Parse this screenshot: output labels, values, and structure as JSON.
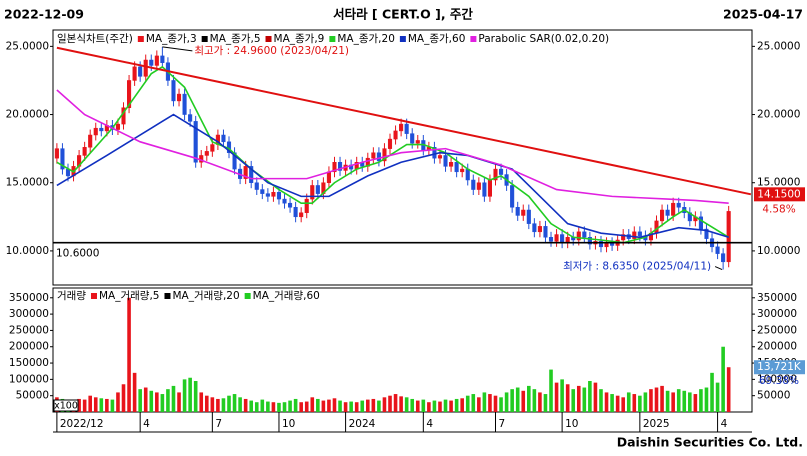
{
  "header": {
    "start_date": "2022-12-09",
    "title": "서타라 [ CERT.O ], 주간",
    "end_date": "2025-04-17"
  },
  "footer": "Daishin Securities Co. Ltd.",
  "chart_data": [
    {
      "type": "candlestick",
      "legend_title": "일본식차트(주간)",
      "series": [
        {
          "name": "MA_종가,3",
          "color": "#e8141b"
        },
        {
          "name": "MA_종가,5",
          "color": "#000000"
        },
        {
          "name": "MA_종가,9",
          "color": "#c00000"
        },
        {
          "name": "MA_종가,20",
          "color": "#22cc22",
          "x": [
            0,
            3,
            10,
            17,
            19,
            23,
            28,
            31,
            35,
            40,
            44,
            46,
            50,
            54,
            58,
            63,
            66,
            70,
            74,
            78,
            80,
            85,
            89,
            93,
            98,
            102,
            106,
            111,
            113,
            117,
            121
          ],
          "values": [
            16.5,
            15.8,
            19,
            23,
            23.5,
            22,
            18,
            17.5,
            16,
            14.5,
            13.5,
            13.5,
            15,
            16,
            16.5,
            17.8,
            17.8,
            17.2,
            16,
            15.2,
            15.5,
            14,
            12,
            11,
            10.8,
            10.6,
            11,
            12.5,
            13,
            12,
            11
          ]
        },
        {
          "name": "MA_종가,60",
          "color": "#1030c0",
          "x": [
            0,
            9,
            19,
            21,
            29,
            38,
            44,
            49,
            56,
            62,
            69,
            74,
            82,
            87,
            92,
            98,
            105,
            112,
            117,
            121
          ],
          "values": [
            14.8,
            17,
            19.5,
            20,
            18,
            15,
            14,
            14,
            15.5,
            16.5,
            17.2,
            17,
            16,
            14,
            12,
            11.3,
            11,
            11.7,
            11.5,
            11
          ]
        },
        {
          "name": "Parabolic SAR(0.02,0.20)",
          "color": "#e020e0",
          "x": [
            0,
            5,
            15,
            25,
            35,
            45,
            55,
            62,
            70,
            80,
            90,
            100,
            110,
            115,
            121
          ],
          "values": [
            21.8,
            20,
            18,
            16.8,
            15.3,
            15.3,
            16.5,
            17.2,
            17.5,
            16.3,
            14.5,
            14,
            13.8,
            13.7,
            13.5
          ]
        }
      ],
      "x": [
        0,
        1,
        2,
        3,
        4,
        5,
        6,
        7,
        8,
        9,
        10,
        11,
        12,
        13,
        14,
        15,
        16,
        17,
        18,
        19,
        20,
        21,
        22,
        23,
        24,
        25,
        26,
        27,
        28,
        29,
        30,
        31,
        32,
        33,
        34,
        35,
        36,
        37,
        38,
        39,
        40,
        41,
        42,
        43,
        44,
        45,
        46,
        47,
        48,
        49,
        50,
        51,
        52,
        53,
        54,
        55,
        56,
        57,
        58,
        59,
        60,
        61,
        62,
        63,
        64,
        65,
        66,
        67,
        68,
        69,
        70,
        71,
        72,
        73,
        74,
        75,
        76,
        77,
        78,
        79,
        80,
        81,
        82,
        83,
        84,
        85,
        86,
        87,
        88,
        89,
        90,
        91,
        92,
        93,
        94,
        95,
        96,
        97,
        98,
        99,
        100,
        101,
        102,
        103,
        104,
        105,
        106,
        107,
        108,
        109,
        110,
        111,
        112,
        113,
        114,
        115,
        116,
        117,
        118,
        119,
        120,
        121
      ],
      "open": [
        16.8,
        17.5,
        16.0,
        15.5,
        16.2,
        17.0,
        17.6,
        18.5,
        19.0,
        18.8,
        19.2,
        18.9,
        19.3,
        20.5,
        22.5,
        23.5,
        22.8,
        24.0,
        23.6,
        24.3,
        23.8,
        22.5,
        21.0,
        21.5,
        20.0,
        19.5,
        16.5,
        17.0,
        17.3,
        17.8,
        18.5,
        18.0,
        17.2,
        16.0,
        15.3,
        16.2,
        15.0,
        14.5,
        14.2,
        14.0,
        14.3,
        13.8,
        13.5,
        13.2,
        12.5,
        12.8,
        13.8,
        14.8,
        14.2,
        15.0,
        15.8,
        16.5,
        15.9,
        16.3,
        16.0,
        16.5,
        16.2,
        16.8,
        17.2,
        16.6,
        17.5,
        18.2,
        18.8,
        19.3,
        18.6,
        17.9,
        18.1,
        17.4,
        17.6,
        16.8,
        17.0,
        16.2,
        16.5,
        15.8,
        16.0,
        15.2,
        14.5,
        15.0,
        14.0,
        15.2,
        16.0,
        15.6,
        14.8,
        13.2,
        12.6,
        13.0,
        12.0,
        11.4,
        11.8,
        11.0,
        10.7,
        11.2,
        10.6,
        11.0,
        10.8,
        11.4,
        11.0,
        10.5,
        10.7,
        10.3,
        10.6,
        10.4,
        10.8,
        11.2,
        10.9,
        11.4,
        11.1,
        10.8,
        11.3,
        12.2,
        13.0,
        12.6,
        13.5,
        13.2,
        12.8,
        12.2,
        12.5,
        11.6,
        10.9,
        10.3,
        9.8,
        9.2
      ],
      "high": [
        17.9,
        17.9,
        16.4,
        16.6,
        17.4,
        18.0,
        18.9,
        19.4,
        19.4,
        19.6,
        19.6,
        19.7,
        20.9,
        22.9,
        23.9,
        23.9,
        24.4,
        24.4,
        24.7,
        24.96,
        24.2,
        22.9,
        21.9,
        21.9,
        20.4,
        19.9,
        17.4,
        17.7,
        18.2,
        18.9,
        18.9,
        18.4,
        17.6,
        16.4,
        16.6,
        16.6,
        15.4,
        14.9,
        14.6,
        14.7,
        14.7,
        14.2,
        13.9,
        13.6,
        13.2,
        14.2,
        15.2,
        15.2,
        15.4,
        16.2,
        16.9,
        16.9,
        16.7,
        16.7,
        16.9,
        16.9,
        17.2,
        17.6,
        17.6,
        17.9,
        18.6,
        19.2,
        19.7,
        19.7,
        19.0,
        18.5,
        18.5,
        18.0,
        18.0,
        17.4,
        17.4,
        16.9,
        16.9,
        16.4,
        16.4,
        15.6,
        15.4,
        15.4,
        15.6,
        16.4,
        16.4,
        16.0,
        15.2,
        13.6,
        13.4,
        13.4,
        12.4,
        12.2,
        12.2,
        11.4,
        11.6,
        11.6,
        11.4,
        11.4,
        11.8,
        11.8,
        11.4,
        11.1,
        11.1,
        11.0,
        11.0,
        11.2,
        11.6,
        11.6,
        11.8,
        11.8,
        11.5,
        11.7,
        12.6,
        13.4,
        13.4,
        13.9,
        13.9,
        13.6,
        13.2,
        12.9,
        12.9,
        12.0,
        11.3,
        10.7,
        10.2,
        13.3
      ],
      "low": [
        16.4,
        15.6,
        15.1,
        15.1,
        15.8,
        16.6,
        17.2,
        18.1,
        18.4,
        18.4,
        18.5,
        18.5,
        18.9,
        20.1,
        22.1,
        22.4,
        22.4,
        23.2,
        23.2,
        23.4,
        22.1,
        20.6,
        20.6,
        19.6,
        19.1,
        16.1,
        16.1,
        16.6,
        16.9,
        17.4,
        17.6,
        16.8,
        15.6,
        14.9,
        14.9,
        14.6,
        14.1,
        13.8,
        13.6,
        13.6,
        13.4,
        13.1,
        12.8,
        12.1,
        12.1,
        12.4,
        13.4,
        13.8,
        13.8,
        14.6,
        15.4,
        15.5,
        15.5,
        15.6,
        15.6,
        15.8,
        15.8,
        16.4,
        16.2,
        16.2,
        17.1,
        17.8,
        18.4,
        18.2,
        17.5,
        17.5,
        17.0,
        17.0,
        16.4,
        16.4,
        15.8,
        15.8,
        15.4,
        15.4,
        14.8,
        14.1,
        14.1,
        13.6,
        13.6,
        14.8,
        15.2,
        14.4,
        12.8,
        12.2,
        12.2,
        11.6,
        11.0,
        11.0,
        10.6,
        10.3,
        10.3,
        10.2,
        10.2,
        10.4,
        10.4,
        10.6,
        10.1,
        10.1,
        9.9,
        9.9,
        10.0,
        10.0,
        10.4,
        10.5,
        10.5,
        10.7,
        10.4,
        10.4,
        10.9,
        11.8,
        12.2,
        12.2,
        12.8,
        12.4,
        11.8,
        11.8,
        11.2,
        10.5,
        9.9,
        9.4,
        8.635,
        8.8
      ],
      "close": [
        17.5,
        16.0,
        15.5,
        16.2,
        17.0,
        17.6,
        18.5,
        19.0,
        18.8,
        19.2,
        18.9,
        19.3,
        20.5,
        22.5,
        23.5,
        22.8,
        24.0,
        23.6,
        24.3,
        23.8,
        22.5,
        21.0,
        21.5,
        20.0,
        19.5,
        16.5,
        17.0,
        17.3,
        17.8,
        18.5,
        18.0,
        17.2,
        16.0,
        15.3,
        16.2,
        15.0,
        14.5,
        14.2,
        14.0,
        14.3,
        13.8,
        13.5,
        13.2,
        12.5,
        12.8,
        13.8,
        14.8,
        14.2,
        15.0,
        15.8,
        16.5,
        15.9,
        16.3,
        16.0,
        16.5,
        16.2,
        16.8,
        17.2,
        16.6,
        17.5,
        18.2,
        18.8,
        19.3,
        18.6,
        17.9,
        18.1,
        17.4,
        17.6,
        16.8,
        17.0,
        16.2,
        16.5,
        15.8,
        16.0,
        15.2,
        14.5,
        15.0,
        14.0,
        15.2,
        16.0,
        15.6,
        14.8,
        13.2,
        12.6,
        13.0,
        12.0,
        11.4,
        11.8,
        11.0,
        10.7,
        11.2,
        10.6,
        11.0,
        10.8,
        11.4,
        11.0,
        10.5,
        10.7,
        10.3,
        10.6,
        10.4,
        10.8,
        11.2,
        10.9,
        11.4,
        11.1,
        10.8,
        11.3,
        12.2,
        13.0,
        12.6,
        13.5,
        13.2,
        12.8,
        12.2,
        12.5,
        11.6,
        10.9,
        10.3,
        9.8,
        9.2,
        12.9
      ],
      "up_color": "#e8141b",
      "down_color": "#2050d8",
      "trendline": {
        "color": "#e01010",
        "x": [
          0,
          125
        ],
        "values": [
          24.9,
          14.15
        ],
        "value_labels": [
          null,
          "14.1500"
        ],
        "change_label": "4.58%"
      },
      "hline": {
        "value": 10.6,
        "label": "10.6000",
        "color": "#000000"
      },
      "annotations": [
        {
          "text": "최고가 : 24.9600 (2023/04/21)",
          "x": 19,
          "value": 24.96,
          "color": "#e01010"
        },
        {
          "text": "최저가 : 8.6350 (2025/04/11)",
          "x": 120,
          "value": 8.635,
          "color": "#1030c0"
        }
      ],
      "xlim": [
        -0.7,
        125.2
      ],
      "ylim": [
        7.5,
        26.2
      ],
      "yticks": [
        {
          "value": 25,
          "label": "25.0000"
        },
        {
          "value": 20,
          "label": "20.0000"
        },
        {
          "value": 15,
          "label": "15.0000"
        },
        {
          "value": 10,
          "label": "10.0000"
        }
      ]
    },
    {
      "type": "bar",
      "legend_title": "거래량",
      "series": [
        {
          "name": "MA_거래량,5",
          "color": "#e8141b"
        },
        {
          "name": "MA_거래량,20",
          "color": "#000000"
        },
        {
          "name": "MA_거래량,60",
          "color": "#22cc22"
        }
      ],
      "x": [
        0,
        1,
        2,
        3,
        4,
        5,
        6,
        7,
        8,
        9,
        10,
        11,
        12,
        13,
        14,
        15,
        16,
        17,
        18,
        19,
        20,
        21,
        22,
        23,
        24,
        25,
        26,
        27,
        28,
        29,
        30,
        31,
        32,
        33,
        34,
        35,
        36,
        37,
        38,
        39,
        40,
        41,
        42,
        43,
        44,
        45,
        46,
        47,
        48,
        49,
        50,
        51,
        52,
        53,
        54,
        55,
        56,
        57,
        58,
        59,
        60,
        61,
        62,
        63,
        64,
        65,
        66,
        67,
        68,
        69,
        70,
        71,
        72,
        73,
        74,
        75,
        76,
        77,
        78,
        79,
        80,
        81,
        82,
        83,
        84,
        85,
        86,
        87,
        88,
        89,
        90,
        91,
        92,
        93,
        94,
        95,
        96,
        97,
        98,
        99,
        100,
        101,
        102,
        103,
        104,
        105,
        106,
        107,
        108,
        109,
        110,
        111,
        112,
        113,
        114,
        115,
        116,
        117,
        118,
        119,
        120,
        121
      ],
      "values": [
        45000,
        40000,
        30000,
        35000,
        40000,
        38000,
        50000,
        45000,
        42000,
        40000,
        38000,
        60000,
        85000,
        350000,
        120000,
        70000,
        75000,
        65000,
        60000,
        55000,
        70000,
        80000,
        60000,
        100000,
        105000,
        95000,
        60000,
        50000,
        45000,
        40000,
        42000,
        50000,
        55000,
        45000,
        40000,
        35000,
        30000,
        38000,
        32000,
        30000,
        28000,
        30000,
        35000,
        40000,
        30000,
        32000,
        45000,
        40000,
        35000,
        38000,
        42000,
        35000,
        30000,
        32000,
        30000,
        35000,
        38000,
        40000,
        35000,
        45000,
        50000,
        55000,
        48000,
        45000,
        40000,
        35000,
        38000,
        30000,
        35000,
        32000,
        38000,
        35000,
        40000,
        42000,
        50000,
        55000,
        45000,
        60000,
        55000,
        50000,
        45000,
        60000,
        70000,
        75000,
        65000,
        80000,
        70000,
        60000,
        55000,
        130000,
        90000,
        100000,
        85000,
        70000,
        80000,
        75000,
        95000,
        90000,
        70000,
        60000,
        55000,
        50000,
        45000,
        60000,
        55000,
        50000,
        60000,
        70000,
        75000,
        80000,
        65000,
        60000,
        70000,
        65000,
        60000,
        55000,
        70000,
        75000,
        120000,
        90000,
        200000,
        137210
      ],
      "last_value_label": "13,721K",
      "change_label": "69.38%",
      "unit_label": "x100",
      "up_color": "#e8141b",
      "down_color": "#22cc22",
      "xlim": [
        -0.7,
        125.2
      ],
      "ylim": [
        0,
        380000
      ],
      "yticks": [
        50000,
        100000,
        150000,
        200000,
        250000,
        300000,
        350000
      ],
      "xticks": [
        {
          "value": 0,
          "label": "2022/12"
        },
        {
          "value": 15,
          "label": "4"
        },
        {
          "value": 28,
          "label": "7"
        },
        {
          "value": 40,
          "label": "10"
        },
        {
          "value": 52,
          "label": "2024"
        },
        {
          "value": 66,
          "label": "4"
        },
        {
          "value": 79,
          "label": "7"
        },
        {
          "value": 91,
          "label": "10"
        },
        {
          "value": 105,
          "label": "2025"
        },
        {
          "value": 119,
          "label": "4"
        }
      ]
    }
  ]
}
